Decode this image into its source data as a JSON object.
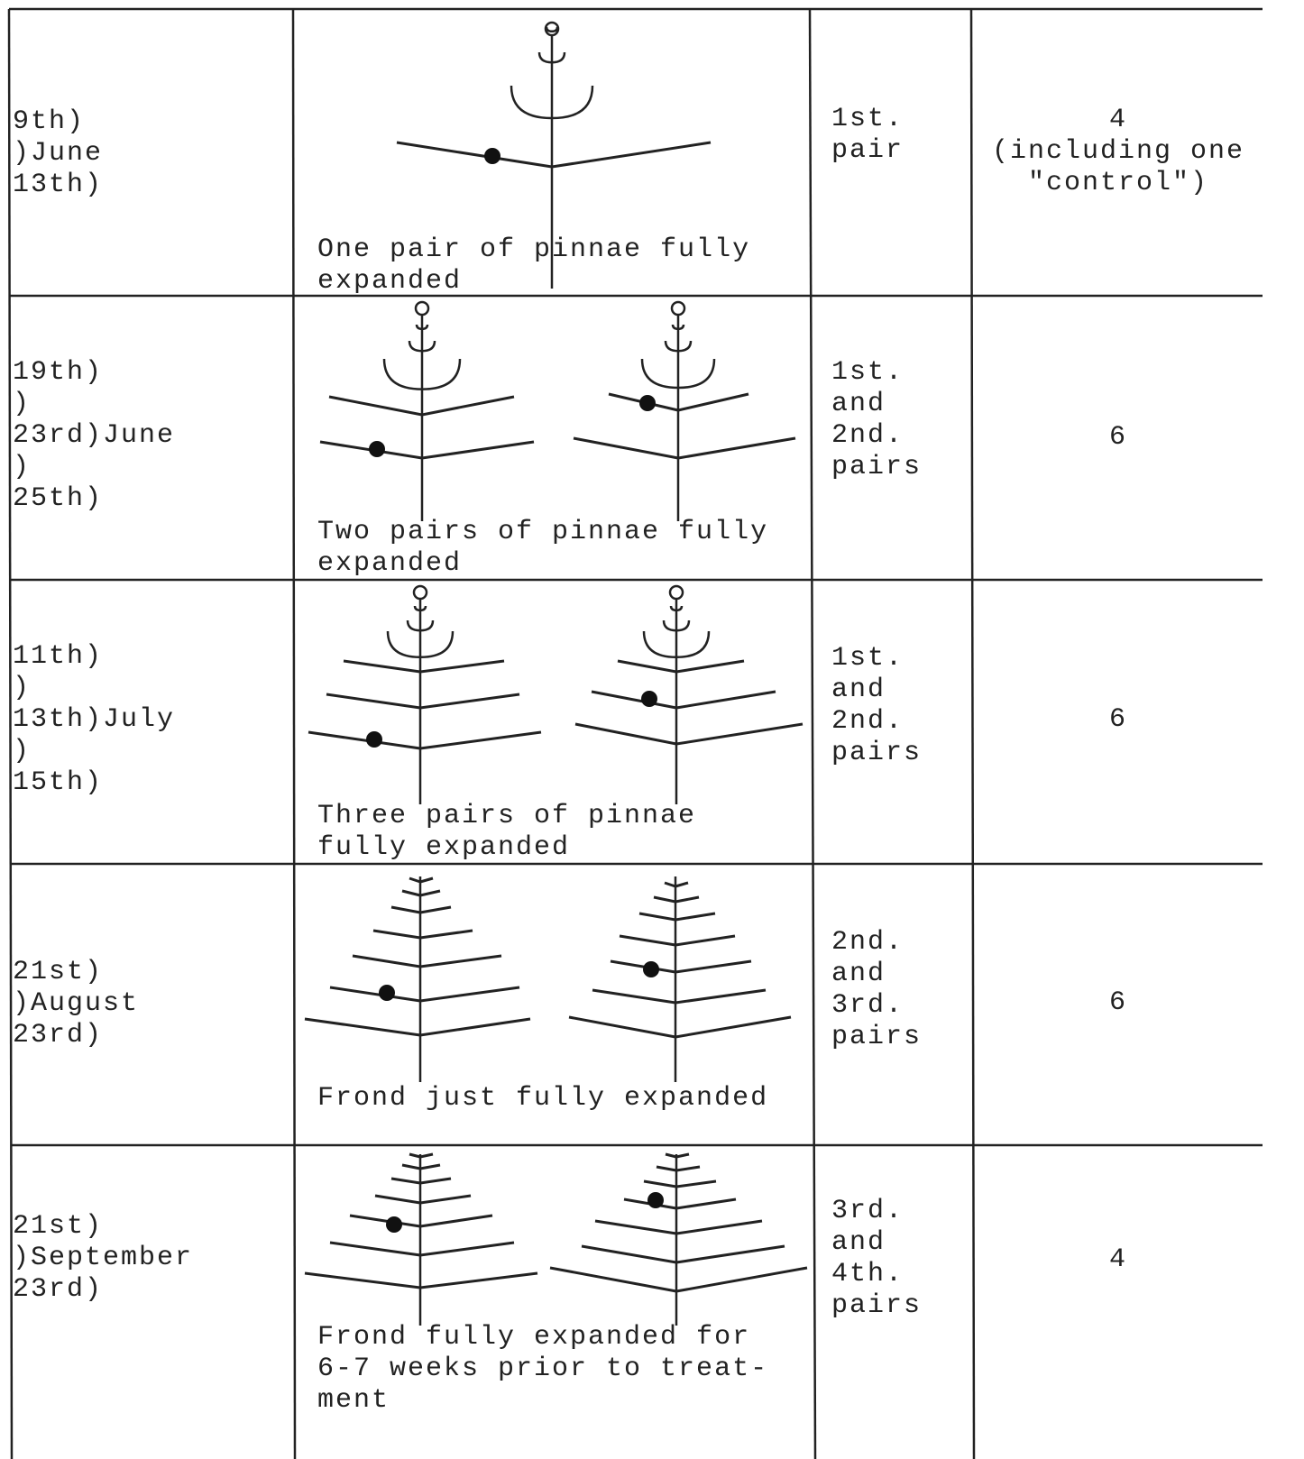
{
  "rows": [
    {
      "date": [
        "9th)",
        ")June",
        "13th)"
      ],
      "caption": [
        "One pair of pinnae fully",
        "expanded"
      ],
      "pairs": [
        "1st.",
        "pair"
      ],
      "count": [
        "4",
        "(including one",
        "\"control\")"
      ]
    },
    {
      "date": [
        "19th)",
        ")",
        "23rd)June",
        ")",
        "25th)"
      ],
      "caption": [
        "Two pairs of pinnae fully",
        "expanded"
      ],
      "pairs": [
        "1st.",
        "and",
        "2nd.",
        "pairs"
      ],
      "count": [
        "6"
      ]
    },
    {
      "date": [
        "11th)",
        ")",
        "13th)July",
        ")",
        "15th)"
      ],
      "caption": [
        "Three pairs of pinnae",
        "fully expanded"
      ],
      "pairs": [
        "1st.",
        "and",
        "2nd.",
        "pairs"
      ],
      "count": [
        "6"
      ]
    },
    {
      "date": [
        "21st)",
        ")August",
        "23rd)"
      ],
      "caption": [
        "Frond just fully expanded"
      ],
      "pairs": [
        "2nd.",
        "and",
        "3rd.",
        "pairs"
      ],
      "count": [
        "6"
      ]
    },
    {
      "date": [
        "21st)",
        ")September",
        "23rd)"
      ],
      "caption": [
        "Frond fully expanded for",
        "6-7 weeks prior to treat-",
        "ment"
      ],
      "pairs": [
        "3rd.",
        "and",
        "4th.",
        "pairs"
      ],
      "count": [
        "4"
      ]
    }
  ]
}
